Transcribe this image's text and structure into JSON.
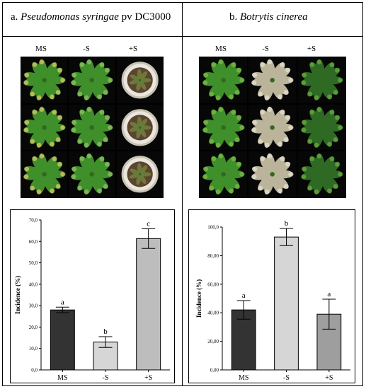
{
  "panels": [
    {
      "title_prefix": "a. ",
      "title_italic": "Pseudomonas syringae",
      "title_suffix": " pv DC3000",
      "photo_columns": [
        "MS",
        "-S",
        "+S"
      ]
    },
    {
      "title_prefix": "b. ",
      "title_italic": "Botrytis cinerea",
      "title_suffix": "",
      "photo_columns": [
        "MS",
        "-S",
        "+S"
      ]
    }
  ],
  "colors": {
    "bar_ms": "#333333",
    "bar_minus_s": "#d6d6d6",
    "bar_plus_s_a": "#bdbdbd",
    "bar_plus_s_b": "#9e9e9e",
    "leaf_healthy": "#3f8f2a",
    "leaf_yellow": "#b9b85a",
    "leaf_dead": "#bcb49a"
  },
  "chart_data": [
    {
      "type": "bar",
      "ylabel": "Incidence (%)",
      "categories": [
        "MS",
        "-S",
        "+S"
      ],
      "values": [
        28.0,
        13.0,
        61.3
      ],
      "errors": [
        1.3,
        2.5,
        4.6
      ],
      "letters": [
        "a",
        "b",
        "c"
      ],
      "ylim": [
        0,
        70
      ],
      "yticks": [
        "0,0",
        "10,0",
        "20,0",
        "30,0",
        "40,0",
        "50,0",
        "60,0",
        "70,0"
      ],
      "grid": false
    },
    {
      "type": "bar",
      "ylabel": "Incidence (%)",
      "categories": [
        "MS",
        "-S",
        "+S"
      ],
      "values": [
        42.0,
        93.0,
        39.0
      ],
      "errors": [
        6.5,
        6.0,
        10.5
      ],
      "letters": [
        "a",
        "b",
        "a"
      ],
      "ylim": [
        0,
        100
      ],
      "yticks": [
        "0,00",
        "20,00",
        "40,00",
        "60,00",
        "80,00",
        "100,0"
      ],
      "grid": false
    }
  ]
}
